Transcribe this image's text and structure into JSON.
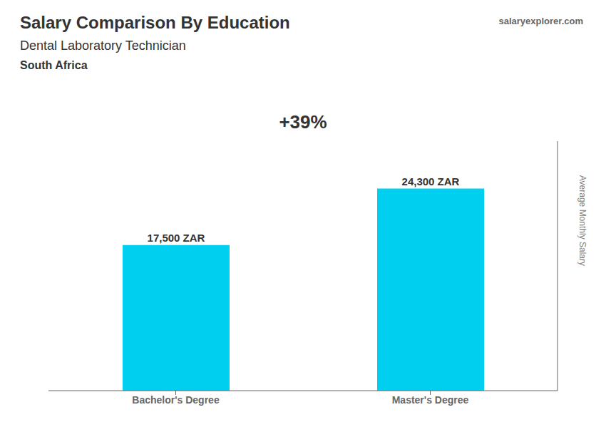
{
  "chart_data": {
    "type": "bar",
    "title": "Salary Comparison By Education",
    "subtitle": [
      "Dental Laboratory Technician",
      "South Africa"
    ],
    "annotations": [
      "salaryexplorer.com",
      "+39%"
    ],
    "categories": [
      "Bachelor's Degree",
      "Master's Degree"
    ],
    "values": [
      17500,
      24300
    ],
    "value_labels": [
      "17,500 ZAR",
      "24,300 ZAR"
    ],
    "color": "#00cfef",
    "ylabel": "Average Monthly Salary",
    "ylim": [
      0,
      30000
    ],
    "yticks": [
      0,
      10000,
      20000,
      30000
    ],
    "data_labels": true,
    "tick_labels": "x",
    "grid": false
  }
}
